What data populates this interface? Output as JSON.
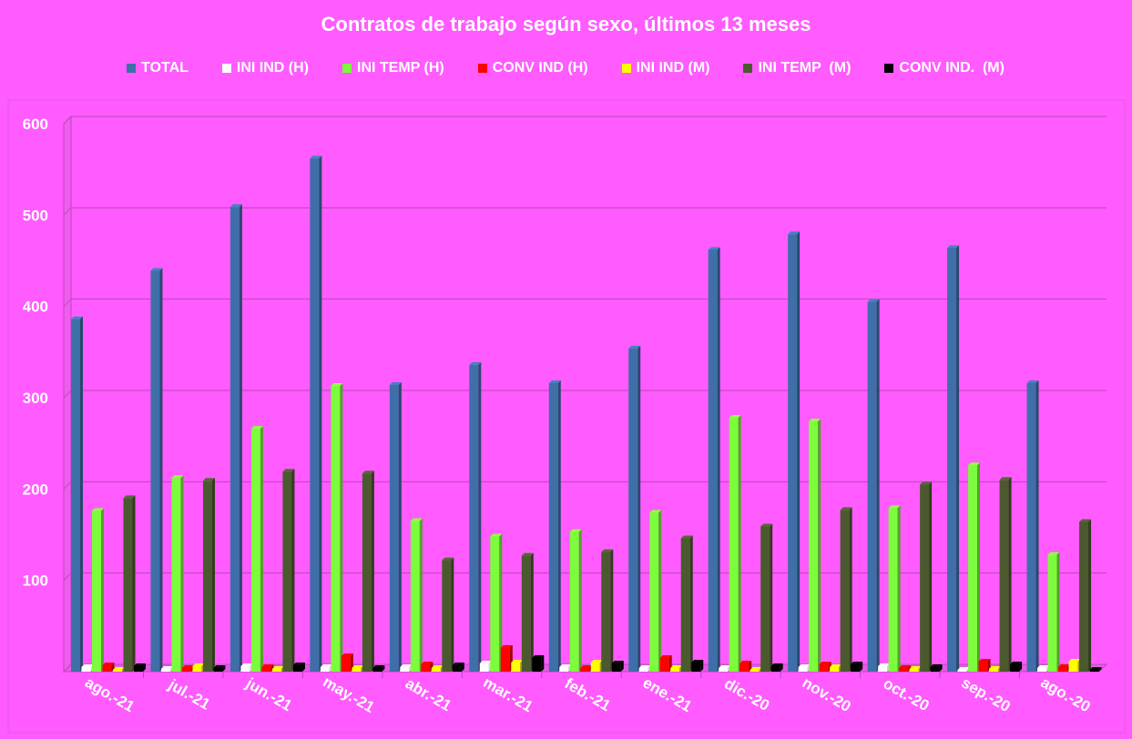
{
  "chart_data": {
    "type": "bar",
    "title": "Contratos de trabajo según sexo, últimos 13 meses",
    "categories": [
      "ago.-21",
      "jul.-21",
      "jun.-21",
      "may.-21",
      "abr.-21",
      "mar.-21",
      "feb.-21",
      "ene.-21",
      "dic.-20",
      "nov.-20",
      "oct.-20",
      "sep.-20",
      "ago.-20"
    ],
    "ylim": [
      0,
      600
    ],
    "yticks": [
      100,
      200,
      300,
      400,
      500,
      600
    ],
    "grid": true,
    "legend_position": "top",
    "series": [
      {
        "name": "TOTAL",
        "color": "#3F6FA8",
        "values": [
          386,
          439,
          509,
          562,
          314,
          336,
          316,
          354,
          462,
          479,
          405,
          464,
          316
        ]
      },
      {
        "name": "INI IND (H)",
        "color": "#FFFFFF",
        "values": [
          5,
          3,
          6,
          5,
          5,
          9,
          5,
          4,
          4,
          5,
          6,
          2,
          4
        ]
      },
      {
        "name": "INI TEMP (H)",
        "color": "#7CFC3C",
        "values": [
          176,
          212,
          266,
          313,
          165,
          148,
          153,
          174,
          278,
          274,
          179,
          226,
          128
        ]
      },
      {
        "name": "CONV IND (H)",
        "color": "#FF0000",
        "values": [
          7,
          4,
          5,
          17,
          8,
          26,
          4,
          15,
          9,
          8,
          4,
          11,
          5
        ]
      },
      {
        "name": "INI IND (M)",
        "color": "#FFFF00",
        "values": [
          2,
          6,
          3,
          4,
          4,
          10,
          10,
          4,
          2,
          5,
          3,
          3,
          11
        ]
      },
      {
        "name": "INI TEMP  (M)",
        "color": "#4B5A2E",
        "values": [
          190,
          209,
          219,
          217,
          122,
          127,
          131,
          146,
          159,
          177,
          205,
          210,
          164
        ]
      },
      {
        "name": "CONV IND.  (M)",
        "color": "#000000",
        "values": [
          6,
          4,
          7,
          4,
          7,
          15,
          9,
          10,
          6,
          8,
          5,
          8,
          2
        ]
      }
    ]
  }
}
